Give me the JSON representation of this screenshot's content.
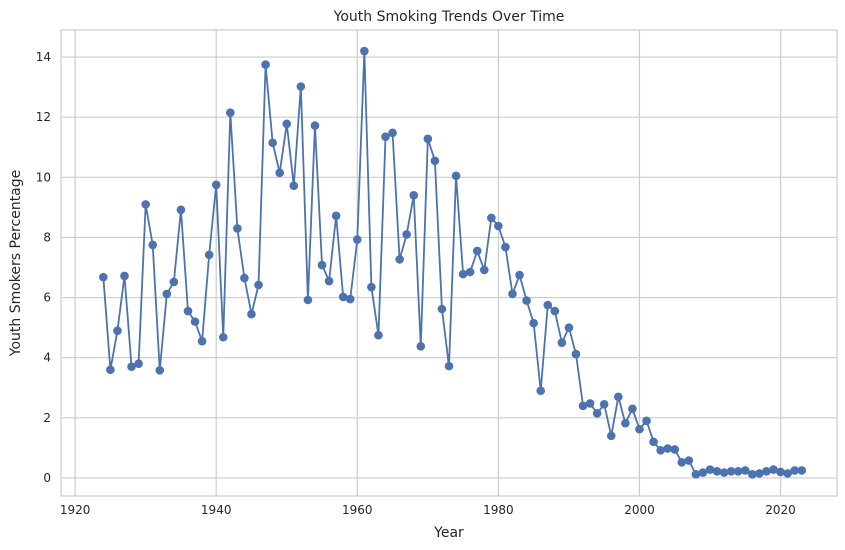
{
  "chart_data": {
    "type": "line",
    "title": "Youth Smoking Trends Over Time",
    "xlabel": "Year",
    "ylabel": "Youth Smokers Percentage",
    "xlim": [
      1918,
      2028
    ],
    "ylim": [
      -0.6,
      14.9
    ],
    "x_ticks": [
      1920,
      1940,
      1960,
      1980,
      2000,
      2020
    ],
    "y_ticks": [
      0,
      2,
      4,
      6,
      8,
      10,
      12,
      14
    ],
    "grid": true,
    "marker": "circle",
    "color": "#4c72b0",
    "x": [
      1924,
      1925,
      1926,
      1927,
      1928,
      1929,
      1930,
      1931,
      1932,
      1933,
      1934,
      1935,
      1936,
      1937,
      1938,
      1939,
      1940,
      1941,
      1942,
      1943,
      1944,
      1945,
      1946,
      1947,
      1948,
      1949,
      1950,
      1951,
      1952,
      1953,
      1954,
      1955,
      1956,
      1957,
      1958,
      1959,
      1960,
      1961,
      1962,
      1963,
      1964,
      1965,
      1966,
      1967,
      1968,
      1969,
      1970,
      1971,
      1972,
      1973,
      1974,
      1975,
      1976,
      1977,
      1978,
      1979,
      1980,
      1981,
      1982,
      1983,
      1984,
      1985,
      1986,
      1987,
      1988,
      1989,
      1990,
      1991,
      1992,
      1993,
      1994,
      1995,
      1996,
      1997,
      1998,
      1999,
      2000,
      2001,
      2002,
      2003,
      2004,
      2005,
      2006,
      2007,
      2008,
      2009,
      2010,
      2011,
      2012,
      2013,
      2014,
      2015,
      2016,
      2017,
      2018,
      2019,
      2020,
      2021,
      2022,
      2023
    ],
    "y": [
      6.68,
      3.6,
      4.9,
      6.72,
      3.7,
      3.8,
      9.1,
      7.75,
      3.58,
      6.12,
      6.52,
      8.92,
      5.55,
      5.2,
      4.55,
      7.42,
      9.75,
      4.68,
      12.15,
      8.3,
      6.65,
      5.45,
      6.42,
      13.75,
      11.15,
      10.15,
      11.78,
      9.72,
      13.02,
      5.92,
      11.72,
      7.08,
      6.55,
      8.72,
      6.02,
      5.95,
      7.93,
      14.2,
      6.35,
      4.75,
      11.35,
      11.48,
      7.27,
      8.1,
      9.4,
      4.38,
      11.28,
      10.55,
      5.62,
      3.72,
      10.05,
      6.78,
      6.85,
      7.55,
      6.92,
      8.65,
      8.38,
      7.68,
      6.12,
      6.75,
      5.9,
      5.15,
      2.9,
      5.75,
      5.55,
      4.5,
      5.0,
      4.12,
      2.4,
      2.48,
      2.15,
      2.45,
      1.4,
      2.7,
      1.82,
      2.3,
      1.62,
      1.9,
      1.2,
      0.92,
      0.98,
      0.95,
      0.52,
      0.58,
      0.12,
      0.18,
      0.28,
      0.22,
      0.18,
      0.22,
      0.22,
      0.25,
      0.12,
      0.15,
      0.22,
      0.28,
      0.2,
      0.15,
      0.25,
      0.25
    ]
  }
}
